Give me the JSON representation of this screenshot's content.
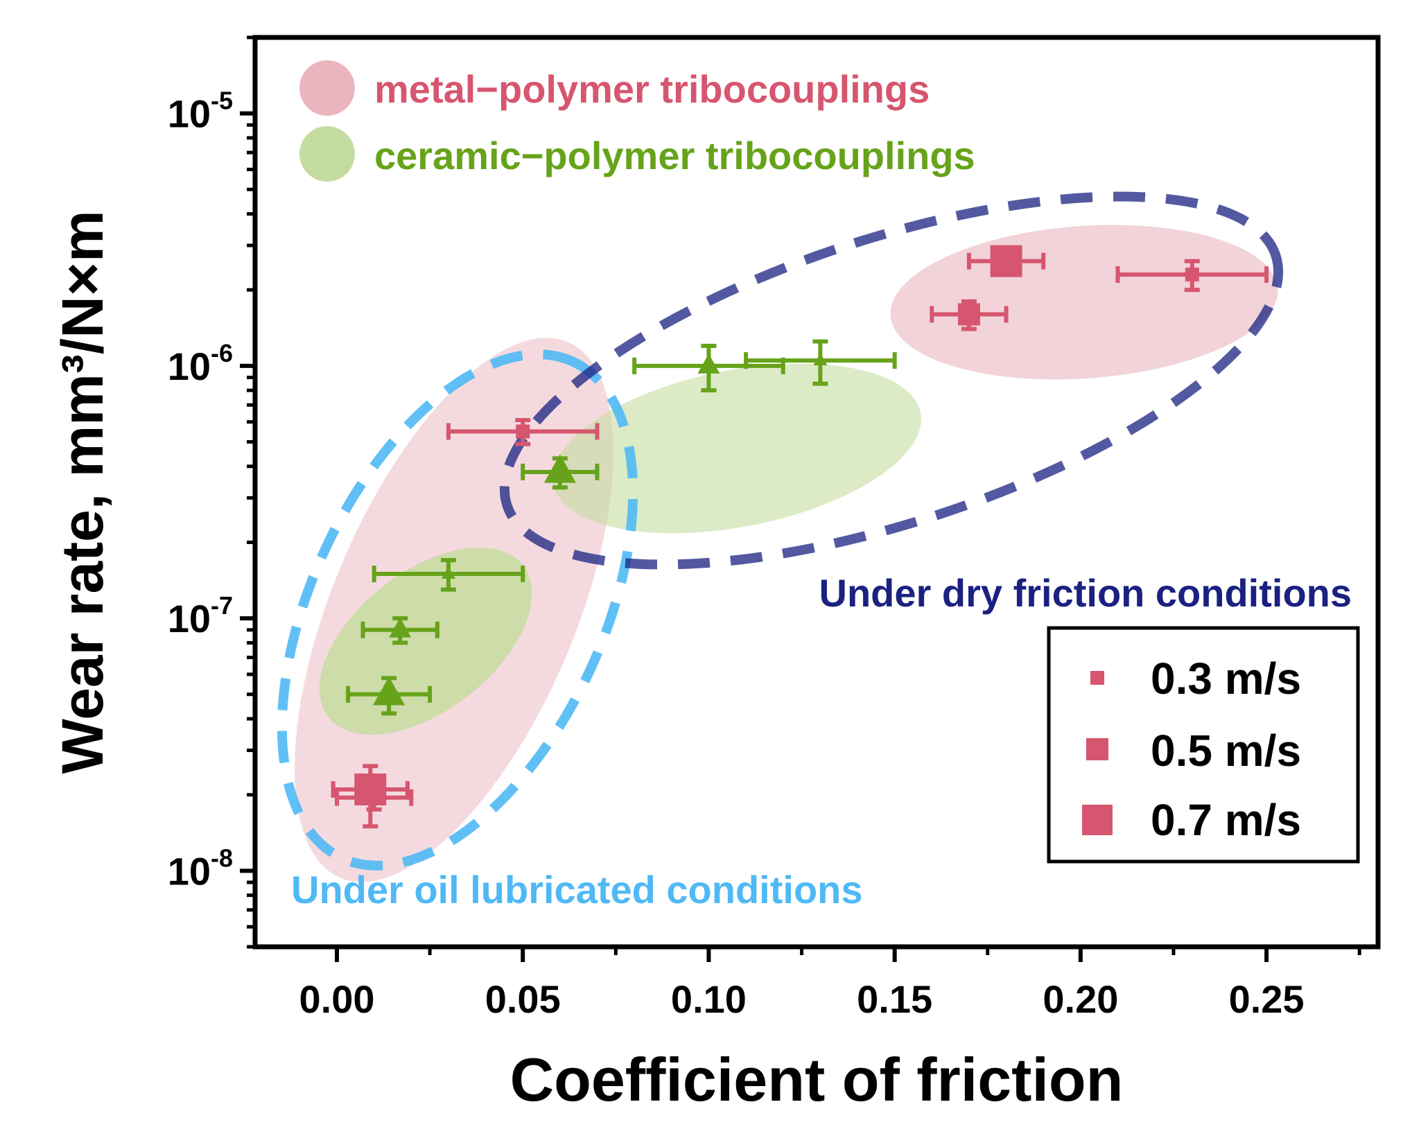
{
  "chart_data": {
    "type": "scatter",
    "xlabel": "Coefficient of friction",
    "ylabel": "Wear rate, mm³/N×m",
    "xlim": [
      -0.022,
      0.28
    ],
    "ylim": [
      5e-09,
      2e-05
    ],
    "yscale": "log",
    "x_ticks": [
      0.0,
      0.05,
      0.1,
      0.15,
      0.2,
      0.25
    ],
    "x_tick_labels": [
      "0.00",
      "0.05",
      "0.10",
      "0.15",
      "0.20",
      "0.25"
    ],
    "y_ticks": [
      1e-05,
      1e-06,
      1e-07,
      1e-08
    ],
    "y_tick_labels": [
      {
        "base": "10",
        "exp": "-5"
      },
      {
        "base": "10",
        "exp": "-6"
      },
      {
        "base": "10",
        "exp": "-7"
      },
      {
        "base": "10",
        "exp": "-8"
      }
    ],
    "grid": false,
    "legend_position": "bottom-right",
    "legend": [
      {
        "label": "0.3 m/s",
        "speed": 0.3
      },
      {
        "label": "0.5 m/s",
        "speed": 0.5
      },
      {
        "label": "0.7 m/s",
        "speed": 0.7
      }
    ],
    "groups": [
      {
        "label": "metal−polymer tribocouplings",
        "color": "#d6566f",
        "blob_color": "#eab5bf"
      },
      {
        "label": "ceramic−polymer tribocouplings",
        "color": "#66a31a",
        "blob_color": "#c5dca0"
      }
    ],
    "regions": [
      {
        "label": "Under dry friction conditions",
        "color": "#1a2180"
      },
      {
        "label": "Under oil lubricated conditions",
        "color": "#4fb9f5"
      }
    ],
    "series": [
      {
        "name": "metal−polymer tribocouplings",
        "marker": "square",
        "color": "#d6566f",
        "points": [
          {
            "x": 0.009,
            "y": 2.1e-08,
            "xerr": 0.01,
            "yerr_low": 6e-09,
            "yerr_high": 5e-09,
            "speed": 0.7
          },
          {
            "x": 0.01,
            "y": 1.95e-08,
            "xerr": 0.01,
            "yerr_low": 2e-09,
            "yerr_high": 2e-09,
            "speed": 0.3
          },
          {
            "x": 0.05,
            "y": 5.5e-07,
            "xerr": 0.02,
            "yerr_low": 6e-08,
            "yerr_high": 6e-08,
            "speed": 0.3
          },
          {
            "x": 0.17,
            "y": 1.6e-06,
            "xerr": 0.01,
            "yerr_low": 2e-07,
            "yerr_high": 2e-07,
            "speed": 0.5
          },
          {
            "x": 0.18,
            "y": 2.6e-06,
            "xerr": 0.01,
            "yerr_low": 2e-07,
            "yerr_high": 2e-07,
            "speed": 0.7
          },
          {
            "x": 0.23,
            "y": 2.3e-06,
            "xerr": 0.02,
            "yerr_low": 3e-07,
            "yerr_high": 3e-07,
            "speed": 0.3
          }
        ]
      },
      {
        "name": "ceramic−polymer tribocouplings",
        "marker": "triangle",
        "color": "#66a31a",
        "points": [
          {
            "x": 0.014,
            "y": 5e-08,
            "xerr": 0.011,
            "yerr_low": 8e-09,
            "yerr_high": 8e-09,
            "speed": 0.7
          },
          {
            "x": 0.017,
            "y": 9e-08,
            "xerr": 0.01,
            "yerr_low": 1e-08,
            "yerr_high": 1e-08,
            "speed": 0.5
          },
          {
            "x": 0.03,
            "y": 1.5e-07,
            "xerr": 0.02,
            "yerr_low": 2e-08,
            "yerr_high": 2e-08,
            "speed": 0.3
          },
          {
            "x": 0.06,
            "y": 3.8e-07,
            "xerr": 0.01,
            "yerr_low": 5e-08,
            "yerr_high": 5e-08,
            "speed": 0.7
          },
          {
            "x": 0.1,
            "y": 1e-06,
            "xerr": 0.02,
            "yerr_low": 2e-07,
            "yerr_high": 2e-07,
            "speed": 0.5
          },
          {
            "x": 0.13,
            "y": 1.05e-06,
            "xerr": 0.02,
            "yerr_low": 2e-07,
            "yerr_high": 2e-07,
            "speed": 0.3
          }
        ]
      }
    ]
  }
}
